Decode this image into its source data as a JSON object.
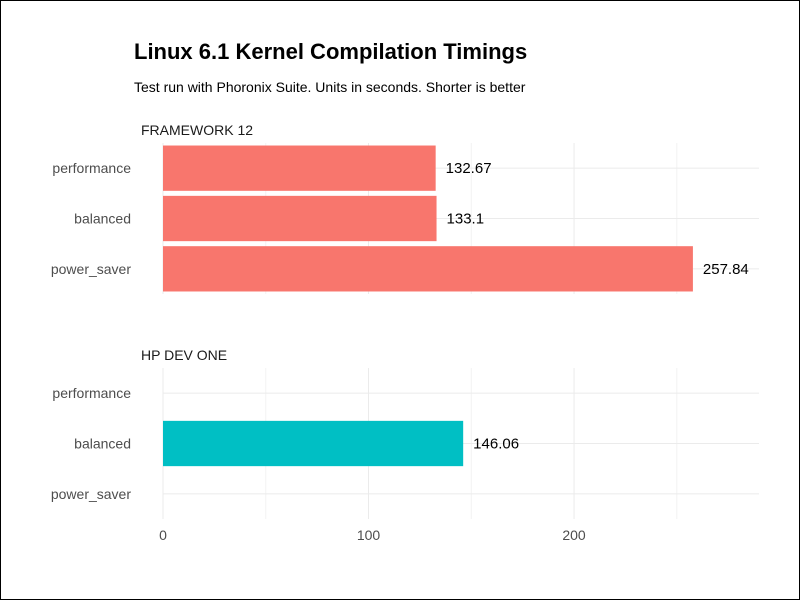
{
  "chart_data": {
    "type": "bar",
    "orientation": "horizontal",
    "title": "Linux 6.1 Kernel Compilation Timings",
    "subtitle": "Test run with Phoronix Suite. Units in seconds. Shorter is better",
    "categories": [
      "performance",
      "balanced",
      "power_saver"
    ],
    "xlim": [
      0,
      290
    ],
    "x_ticks": [
      "0",
      "100",
      "200"
    ],
    "grid": true,
    "legend": "none",
    "panels": [
      {
        "name": "FRAMEWORK 12",
        "color": "#F8766D",
        "values": [
          132.67,
          133.1,
          257.84
        ],
        "labels": [
          "132.67",
          "133.1",
          "257.84"
        ]
      },
      {
        "name": "HP DEV ONE",
        "color": "#00BFC4",
        "values": [
          null,
          146.06,
          null
        ],
        "labels": [
          "",
          "146.06",
          ""
        ]
      }
    ]
  }
}
